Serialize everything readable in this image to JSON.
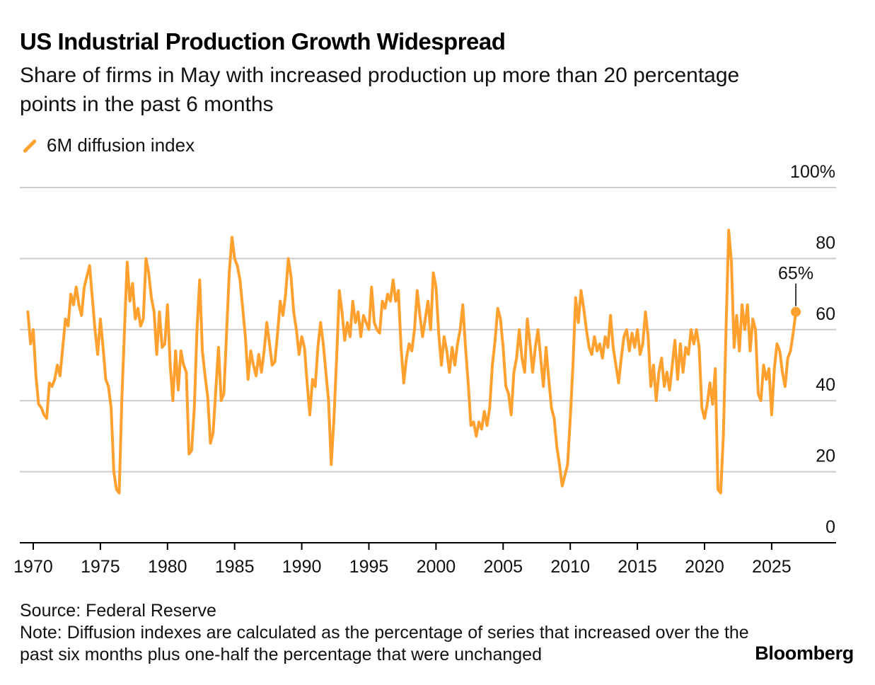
{
  "title": "US Industrial Production Growth Widespread",
  "subtitle": "Share of firms in May with increased production up more than 20 percentage points in the past 6 months",
  "source": "Source: Federal Reserve",
  "note": "Note: Diffusion indexes are calculated as the percentage of series that increased over the the past six months plus one-half the percentage that were unchanged",
  "brand": "Bloomberg",
  "colors": {
    "series": "#ffa02f",
    "grid": "#cccccc",
    "axis": "#000000"
  },
  "chart_data": {
    "type": "line",
    "xlabel": "",
    "ylabel": "",
    "xlim": [
      1969.0,
      2029.8
    ],
    "ylim": [
      0,
      100
    ],
    "grid": true,
    "legend": "top-left",
    "x_ticks": [
      1970,
      1975,
      1980,
      1985,
      1990,
      1995,
      2000,
      2005,
      2010,
      2015,
      2020,
      2025
    ],
    "y_ticks": [
      {
        "value": 0,
        "label": "0"
      },
      {
        "value": 20,
        "label": "20"
      },
      {
        "value": 40,
        "label": "40"
      },
      {
        "value": 60,
        "label": "60"
      },
      {
        "value": 80,
        "label": "80"
      },
      {
        "value": 100,
        "label": "100%"
      }
    ],
    "annotation": {
      "x": 2025.4,
      "y": 65,
      "label": "65%"
    },
    "series": [
      {
        "name": "6M diffusion index",
        "points": [
          [
            1969.6,
            65
          ],
          [
            1969.8,
            56
          ],
          [
            1970.0,
            60
          ],
          [
            1970.2,
            47
          ],
          [
            1970.4,
            39
          ],
          [
            1970.6,
            38
          ],
          [
            1970.8,
            36
          ],
          [
            1971.0,
            35
          ],
          [
            1971.2,
            45
          ],
          [
            1971.4,
            44
          ],
          [
            1971.6,
            46
          ],
          [
            1971.8,
            50
          ],
          [
            1972.0,
            47
          ],
          [
            1972.2,
            55
          ],
          [
            1972.4,
            63
          ],
          [
            1972.6,
            61
          ],
          [
            1972.8,
            70
          ],
          [
            1973.0,
            67
          ],
          [
            1973.2,
            72
          ],
          [
            1973.4,
            67
          ],
          [
            1973.6,
            64
          ],
          [
            1973.8,
            72
          ],
          [
            1974.0,
            75
          ],
          [
            1974.2,
            78
          ],
          [
            1974.4,
            69
          ],
          [
            1974.6,
            60
          ],
          [
            1974.8,
            53
          ],
          [
            1975.0,
            63
          ],
          [
            1975.2,
            55
          ],
          [
            1975.4,
            46
          ],
          [
            1975.6,
            44
          ],
          [
            1975.8,
            38
          ],
          [
            1976.0,
            20
          ],
          [
            1976.2,
            15
          ],
          [
            1976.4,
            14
          ],
          [
            1976.6,
            40
          ],
          [
            1976.8,
            60
          ],
          [
            1977.0,
            79
          ],
          [
            1977.2,
            68
          ],
          [
            1977.4,
            73
          ],
          [
            1977.6,
            63
          ],
          [
            1977.8,
            66
          ],
          [
            1978.0,
            61
          ],
          [
            1978.2,
            63
          ],
          [
            1978.4,
            80
          ],
          [
            1978.6,
            76
          ],
          [
            1978.8,
            69
          ],
          [
            1979.0,
            65
          ],
          [
            1979.2,
            53
          ],
          [
            1979.4,
            65
          ],
          [
            1979.6,
            55
          ],
          [
            1979.8,
            56
          ],
          [
            1980.0,
            67
          ],
          [
            1980.2,
            50
          ],
          [
            1980.4,
            40
          ],
          [
            1980.6,
            54
          ],
          [
            1980.8,
            43
          ],
          [
            1981.0,
            54
          ],
          [
            1981.2,
            50
          ],
          [
            1981.4,
            48
          ],
          [
            1981.6,
            25
          ],
          [
            1981.8,
            26
          ],
          [
            1982.0,
            38
          ],
          [
            1982.2,
            60
          ],
          [
            1982.4,
            74
          ],
          [
            1982.6,
            54
          ],
          [
            1982.8,
            47
          ],
          [
            1983.0,
            41
          ],
          [
            1983.2,
            28
          ],
          [
            1983.4,
            31
          ],
          [
            1983.6,
            43
          ],
          [
            1983.8,
            55
          ],
          [
            1984.0,
            40
          ],
          [
            1984.2,
            42
          ],
          [
            1984.4,
            59
          ],
          [
            1984.6,
            76
          ],
          [
            1984.8,
            86
          ],
          [
            1985.0,
            80
          ],
          [
            1985.2,
            78
          ],
          [
            1985.4,
            74
          ],
          [
            1985.6,
            66
          ],
          [
            1985.8,
            58
          ],
          [
            1986.0,
            46
          ],
          [
            1986.2,
            54
          ],
          [
            1986.4,
            50
          ],
          [
            1986.6,
            47
          ],
          [
            1986.8,
            53
          ],
          [
            1987.0,
            48
          ],
          [
            1987.2,
            54
          ],
          [
            1987.4,
            62
          ],
          [
            1987.6,
            56
          ],
          [
            1987.8,
            50
          ],
          [
            1988.0,
            51
          ],
          [
            1988.2,
            59
          ],
          [
            1988.4,
            68
          ],
          [
            1988.6,
            64
          ],
          [
            1988.8,
            70
          ],
          [
            1989.0,
            80
          ],
          [
            1989.2,
            75
          ],
          [
            1989.4,
            65
          ],
          [
            1989.6,
            60
          ],
          [
            1989.8,
            53
          ],
          [
            1990.0,
            58
          ],
          [
            1990.2,
            55
          ],
          [
            1990.4,
            45
          ],
          [
            1990.6,
            36
          ],
          [
            1990.8,
            46
          ],
          [
            1991.0,
            44
          ],
          [
            1991.2,
            55
          ],
          [
            1991.4,
            62
          ],
          [
            1991.6,
            56
          ],
          [
            1991.8,
            48
          ],
          [
            1992.0,
            40
          ],
          [
            1992.2,
            22
          ],
          [
            1992.4,
            35
          ],
          [
            1992.6,
            52
          ],
          [
            1992.8,
            71
          ],
          [
            1993.0,
            65
          ],
          [
            1993.2,
            57
          ],
          [
            1993.4,
            62
          ],
          [
            1993.6,
            58
          ],
          [
            1993.8,
            68
          ],
          [
            1994.0,
            62
          ],
          [
            1994.2,
            65
          ],
          [
            1994.4,
            58
          ],
          [
            1994.6,
            64
          ],
          [
            1994.8,
            62
          ],
          [
            1995.0,
            60
          ],
          [
            1995.2,
            72
          ],
          [
            1995.4,
            62
          ],
          [
            1995.6,
            60
          ],
          [
            1995.8,
            59
          ],
          [
            1996.0,
            68
          ],
          [
            1996.2,
            66
          ],
          [
            1996.4,
            70
          ],
          [
            1996.6,
            68
          ],
          [
            1996.8,
            74
          ],
          [
            1997.0,
            68
          ],
          [
            1997.2,
            71
          ],
          [
            1997.4,
            55
          ],
          [
            1997.6,
            45
          ],
          [
            1997.8,
            52
          ],
          [
            1998.0,
            56
          ],
          [
            1998.2,
            54
          ],
          [
            1998.4,
            60
          ],
          [
            1998.6,
            71
          ],
          [
            1998.8,
            64
          ],
          [
            1999.0,
            58
          ],
          [
            1999.2,
            63
          ],
          [
            1999.4,
            68
          ],
          [
            1999.6,
            60
          ],
          [
            1999.8,
            76
          ],
          [
            2000.0,
            72
          ],
          [
            2000.2,
            59
          ],
          [
            2000.4,
            50
          ],
          [
            2000.6,
            58
          ],
          [
            2000.8,
            54
          ],
          [
            2001.0,
            48
          ],
          [
            2001.2,
            55
          ],
          [
            2001.4,
            50
          ],
          [
            2001.6,
            56
          ],
          [
            2001.8,
            60
          ],
          [
            2002.0,
            67
          ],
          [
            2002.2,
            55
          ],
          [
            2002.4,
            45
          ],
          [
            2002.6,
            33
          ],
          [
            2002.8,
            34
          ],
          [
            2003.0,
            30
          ],
          [
            2003.2,
            34
          ],
          [
            2003.4,
            32
          ],
          [
            2003.6,
            37
          ],
          [
            2003.8,
            33
          ],
          [
            2004.0,
            38
          ],
          [
            2004.2,
            50
          ],
          [
            2004.4,
            57
          ],
          [
            2004.6,
            66
          ],
          [
            2004.8,
            63
          ],
          [
            2005.0,
            55
          ],
          [
            2005.2,
            44
          ],
          [
            2005.4,
            42
          ],
          [
            2005.6,
            36
          ],
          [
            2005.8,
            48
          ],
          [
            2006.0,
            52
          ],
          [
            2006.2,
            60
          ],
          [
            2006.4,
            52
          ],
          [
            2006.6,
            48
          ],
          [
            2006.8,
            63
          ],
          [
            2007.0,
            56
          ],
          [
            2007.2,
            48
          ],
          [
            2007.4,
            55
          ],
          [
            2007.6,
            60
          ],
          [
            2007.8,
            52
          ],
          [
            2008.0,
            44
          ],
          [
            2008.2,
            55
          ],
          [
            2008.4,
            46
          ],
          [
            2008.6,
            38
          ],
          [
            2008.8,
            35
          ],
          [
            2009.0,
            27
          ],
          [
            2009.2,
            22
          ],
          [
            2009.4,
            16
          ],
          [
            2009.6,
            19
          ],
          [
            2009.8,
            22
          ],
          [
            2010.0,
            35
          ],
          [
            2010.2,
            50
          ],
          [
            2010.4,
            69
          ],
          [
            2010.6,
            62
          ],
          [
            2010.8,
            71
          ],
          [
            2011.0,
            66
          ],
          [
            2011.2,
            60
          ],
          [
            2011.4,
            55
          ],
          [
            2011.6,
            53
          ],
          [
            2011.8,
            58
          ],
          [
            2012.0,
            54
          ],
          [
            2012.2,
            56
          ],
          [
            2012.4,
            52
          ],
          [
            2012.6,
            58
          ],
          [
            2012.8,
            55
          ],
          [
            2013.0,
            64
          ],
          [
            2013.2,
            55
          ],
          [
            2013.4,
            50
          ],
          [
            2013.6,
            45
          ],
          [
            2013.8,
            52
          ],
          [
            2014.0,
            58
          ],
          [
            2014.2,
            60
          ],
          [
            2014.4,
            54
          ],
          [
            2014.6,
            59
          ],
          [
            2014.8,
            55
          ],
          [
            2015.0,
            60
          ],
          [
            2015.2,
            53
          ],
          [
            2015.4,
            56
          ],
          [
            2015.6,
            65
          ],
          [
            2015.8,
            58
          ],
          [
            2016.0,
            44
          ],
          [
            2016.2,
            50
          ],
          [
            2016.4,
            40
          ],
          [
            2016.6,
            48
          ],
          [
            2016.8,
            52
          ],
          [
            2017.0,
            44
          ],
          [
            2017.2,
            48
          ],
          [
            2017.4,
            43
          ],
          [
            2017.6,
            50
          ],
          [
            2017.8,
            57
          ],
          [
            2018.0,
            46
          ],
          [
            2018.2,
            56
          ],
          [
            2018.4,
            48
          ],
          [
            2018.6,
            55
          ],
          [
            2018.8,
            53
          ],
          [
            2019.0,
            60
          ],
          [
            2019.2,
            56
          ],
          [
            2019.4,
            60
          ],
          [
            2019.6,
            55
          ],
          [
            2019.8,
            38
          ],
          [
            2020.0,
            35
          ],
          [
            2020.2,
            39
          ],
          [
            2020.4,
            45
          ],
          [
            2020.6,
            39
          ],
          [
            2020.8,
            49
          ],
          [
            2021.0,
            15
          ],
          [
            2021.2,
            14
          ],
          [
            2021.4,
            30
          ],
          [
            2021.6,
            60
          ],
          [
            2021.8,
            88
          ],
          [
            2022.0,
            79
          ],
          [
            2022.2,
            55
          ],
          [
            2022.4,
            64
          ],
          [
            2022.6,
            54
          ],
          [
            2022.8,
            67
          ],
          [
            2023.0,
            60
          ],
          [
            2023.2,
            67
          ],
          [
            2023.4,
            54
          ],
          [
            2023.6,
            63
          ],
          [
            2023.8,
            60
          ],
          [
            2024.0,
            42
          ],
          [
            2024.2,
            40
          ],
          [
            2024.4,
            50
          ],
          [
            2024.6,
            46
          ],
          [
            2024.8,
            49
          ],
          [
            2025.0,
            36
          ],
          [
            2025.2,
            49
          ],
          [
            2025.4,
            56
          ],
          [
            2025.6,
            54
          ],
          [
            2025.8,
            48
          ],
          [
            2026.0,
            44
          ],
          [
            2026.2,
            52
          ],
          [
            2026.4,
            54
          ],
          [
            2026.6,
            59
          ],
          [
            2026.8,
            65
          ]
        ]
      }
    ]
  }
}
